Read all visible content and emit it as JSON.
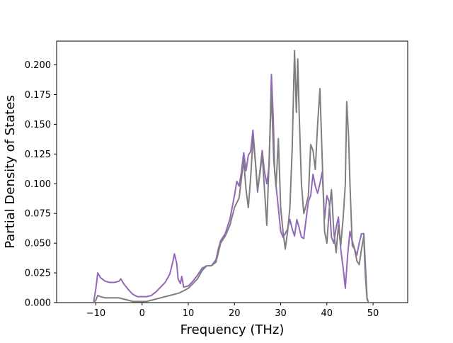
{
  "chart_data": {
    "type": "line",
    "title": "",
    "xlabel": "Frequency (THz)",
    "ylabel": "Partial Density of States",
    "xlim": [
      -18.5,
      57.5
    ],
    "ylim": [
      0.0,
      0.22
    ],
    "xticks": [
      -10,
      0,
      10,
      20,
      30,
      40,
      50
    ],
    "xtick_labels": [
      "−10",
      "0",
      "10",
      "20",
      "30",
      "40",
      "50"
    ],
    "yticks": [
      0.0,
      0.025,
      0.05,
      0.075,
      0.1,
      0.125,
      0.15,
      0.175,
      0.2
    ],
    "ytick_labels": [
      "0.000",
      "0.025",
      "0.050",
      "0.075",
      "0.100",
      "0.125",
      "0.150",
      "0.175",
      "0.200"
    ],
    "grid": false,
    "series": [
      {
        "color": "#9467bd",
        "points": [
          [
            -15,
            0
          ],
          [
            -10.5,
            0
          ],
          [
            -10,
            0.012
          ],
          [
            -9.6,
            0.025
          ],
          [
            -9,
            0.021
          ],
          [
            -8,
            0.018
          ],
          [
            -7,
            0.017
          ],
          [
            -6,
            0.017
          ],
          [
            -5,
            0.018
          ],
          [
            -4.6,
            0.02
          ],
          [
            -4,
            0.016
          ],
          [
            -3,
            0.011
          ],
          [
            -2,
            0.007
          ],
          [
            -1,
            0.005
          ],
          [
            0,
            0.005
          ],
          [
            1,
            0.005
          ],
          [
            2,
            0.006
          ],
          [
            3,
            0.009
          ],
          [
            4,
            0.013
          ],
          [
            5,
            0.017
          ],
          [
            6,
            0.024
          ],
          [
            6.7,
            0.035
          ],
          [
            7,
            0.041
          ],
          [
            7.5,
            0.033
          ],
          [
            7.8,
            0.02
          ],
          [
            8.3,
            0.016
          ],
          [
            8.6,
            0.022
          ],
          [
            9,
            0.013
          ],
          [
            10,
            0.014
          ],
          [
            11,
            0.018
          ],
          [
            12,
            0.023
          ],
          [
            13,
            0.029
          ],
          [
            14,
            0.031
          ],
          [
            15,
            0.031
          ],
          [
            16,
            0.036
          ],
          [
            16.5,
            0.045
          ],
          [
            17,
            0.052
          ],
          [
            18,
            0.058
          ],
          [
            19,
            0.07
          ],
          [
            20,
            0.09
          ],
          [
            20.5,
            0.102
          ],
          [
            21,
            0.098
          ],
          [
            21.5,
            0.11
          ],
          [
            22,
            0.126
          ],
          [
            22.5,
            0.111
          ],
          [
            23,
            0.124
          ],
          [
            23.5,
            0.127
          ],
          [
            24,
            0.145
          ],
          [
            24.5,
            0.12
          ],
          [
            25,
            0.093
          ],
          [
            25.5,
            0.11
          ],
          [
            26,
            0.128
          ],
          [
            26.5,
            0.11
          ],
          [
            27,
            0.1
          ],
          [
            27.5,
            0.115
          ],
          [
            28,
            0.192
          ],
          [
            28.4,
            0.155
          ],
          [
            28.7,
            0.11
          ],
          [
            29,
            0.098
          ],
          [
            29.5,
            0.08
          ],
          [
            30,
            0.06
          ],
          [
            30.5,
            0.055
          ],
          [
            31,
            0.058
          ],
          [
            31.5,
            0.062
          ],
          [
            32,
            0.07
          ],
          [
            32.5,
            0.062
          ],
          [
            33,
            0.056
          ],
          [
            33.5,
            0.07
          ],
          [
            34,
            0.063
          ],
          [
            34.5,
            0.055
          ],
          [
            35,
            0.054
          ],
          [
            35.5,
            0.07
          ],
          [
            36,
            0.085
          ],
          [
            36.5,
            0.09
          ],
          [
            37,
            0.108
          ],
          [
            37.5,
            0.098
          ],
          [
            38,
            0.092
          ],
          [
            38.5,
            0.1
          ],
          [
            39,
            0.11
          ],
          [
            39.5,
            0.07
          ],
          [
            40,
            0.09
          ],
          [
            40.5,
            0.085
          ],
          [
            41,
            0.055
          ],
          [
            41.5,
            0.05
          ],
          [
            42,
            0.063
          ],
          [
            42.5,
            0.072
          ],
          [
            43,
            0.045
          ],
          [
            43.5,
            0.03
          ],
          [
            44,
            0.012
          ],
          [
            44.5,
            0.04
          ],
          [
            45,
            0.06
          ],
          [
            45.5,
            0.052
          ],
          [
            46,
            0.045
          ],
          [
            46.5,
            0.04
          ],
          [
            47,
            0.05
          ],
          [
            47.5,
            0.058
          ],
          [
            48,
            0.058
          ],
          [
            48.3,
            0.035
          ],
          [
            48.7,
            0.004
          ],
          [
            49,
            0.0
          ],
          [
            54.5,
            0.0
          ]
        ]
      },
      {
        "color": "#7f7f7f",
        "points": [
          [
            -15,
            0
          ],
          [
            -10.5,
            0
          ],
          [
            -10,
            0.002
          ],
          [
            -9.6,
            0.006
          ],
          [
            -9,
            0.005
          ],
          [
            -8,
            0.004
          ],
          [
            -7,
            0.004
          ],
          [
            -6,
            0.004
          ],
          [
            -5,
            0.004
          ],
          [
            -4,
            0.003
          ],
          [
            -3,
            0.002
          ],
          [
            -2,
            0.001
          ],
          [
            -1,
            0.001
          ],
          [
            0,
            0.001
          ],
          [
            1,
            0.001
          ],
          [
            2,
            0.002
          ],
          [
            3,
            0.003
          ],
          [
            4,
            0.004
          ],
          [
            5,
            0.005
          ],
          [
            6,
            0.006
          ],
          [
            7,
            0.007
          ],
          [
            8,
            0.008
          ],
          [
            9,
            0.01
          ],
          [
            10,
            0.012
          ],
          [
            11,
            0.016
          ],
          [
            12,
            0.02
          ],
          [
            13,
            0.027
          ],
          [
            14,
            0.031
          ],
          [
            15,
            0.031
          ],
          [
            16,
            0.034
          ],
          [
            16.5,
            0.042
          ],
          [
            17,
            0.05
          ],
          [
            18,
            0.056
          ],
          [
            19,
            0.065
          ],
          [
            20,
            0.08
          ],
          [
            21,
            0.088
          ],
          [
            22,
            0.12
          ],
          [
            22.5,
            0.095
          ],
          [
            23,
            0.08
          ],
          [
            23.5,
            0.105
          ],
          [
            24,
            0.138
          ],
          [
            24.5,
            0.12
          ],
          [
            25,
            0.095
          ],
          [
            25.5,
            0.108
          ],
          [
            26,
            0.125
          ],
          [
            26.5,
            0.095
          ],
          [
            27,
            0.065
          ],
          [
            27.5,
            0.12
          ],
          [
            28,
            0.178
          ],
          [
            28.5,
            0.12
          ],
          [
            29,
            0.098
          ],
          [
            29.5,
            0.138
          ],
          [
            30,
            0.08
          ],
          [
            30.5,
            0.06
          ],
          [
            31,
            0.045
          ],
          [
            31.5,
            0.06
          ],
          [
            32,
            0.08
          ],
          [
            32.5,
            0.13
          ],
          [
            33,
            0.212
          ],
          [
            33.4,
            0.16
          ],
          [
            33.7,
            0.205
          ],
          [
            34,
            0.16
          ],
          [
            34.5,
            0.1
          ],
          [
            35,
            0.075
          ],
          [
            35.5,
            0.082
          ],
          [
            36,
            0.09
          ],
          [
            36.5,
            0.133
          ],
          [
            37,
            0.128
          ],
          [
            37.5,
            0.112
          ],
          [
            38,
            0.15
          ],
          [
            38.5,
            0.18
          ],
          [
            39,
            0.12
          ],
          [
            39.5,
            0.06
          ],
          [
            40,
            0.05
          ],
          [
            40.5,
            0.078
          ],
          [
            41,
            0.095
          ],
          [
            41.5,
            0.06
          ],
          [
            42,
            0.042
          ],
          [
            42.5,
            0.065
          ],
          [
            43,
            0.048
          ],
          [
            43.5,
            0.07
          ],
          [
            44,
            0.1
          ],
          [
            44.3,
            0.169
          ],
          [
            44.7,
            0.14
          ],
          [
            45,
            0.1
          ],
          [
            45.5,
            0.048
          ],
          [
            46,
            0.045
          ],
          [
            46.5,
            0.035
          ],
          [
            47,
            0.032
          ],
          [
            47.5,
            0.045
          ],
          [
            48,
            0.056
          ],
          [
            48.3,
            0.025
          ],
          [
            48.7,
            0.003
          ],
          [
            49,
            0.0
          ],
          [
            54.5,
            0.0
          ]
        ]
      }
    ]
  }
}
